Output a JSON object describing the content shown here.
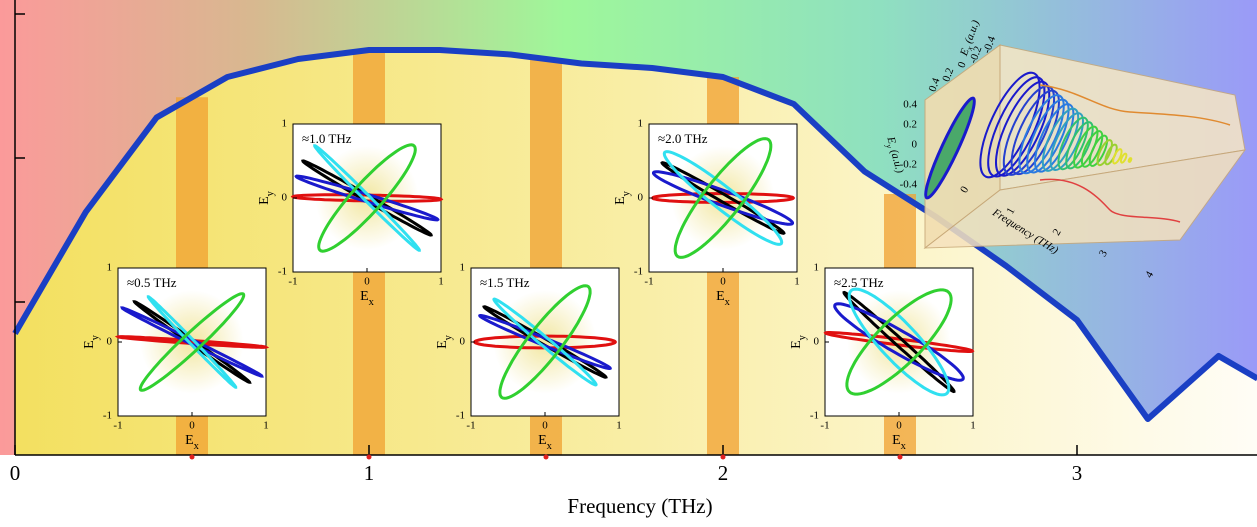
{
  "chart_data": [
    {
      "type": "line",
      "xlabel": "Frequency (THz)",
      "x": [
        0,
        0.2,
        0.4,
        0.6,
        0.8,
        1.0,
        1.2,
        1.4,
        1.6,
        1.8,
        2.0,
        2.2,
        2.4,
        2.6,
        2.8,
        3.0,
        3.2,
        3.4,
        3.51
      ],
      "values": [
        0.27,
        0.54,
        0.75,
        0.84,
        0.88,
        0.9,
        0.9,
        0.89,
        0.87,
        0.86,
        0.84,
        0.78,
        0.63,
        0.53,
        0.42,
        0.3,
        0.08,
        0.22,
        0.17
      ],
      "color": "#1a3fc4",
      "xlim": [
        0,
        3.51
      ],
      "xticks": [
        0,
        1,
        2,
        3
      ],
      "ylim": [
        0,
        1
      ],
      "yticks": [
        0.34,
        0.66,
        0.98
      ],
      "highlight_bands": [
        0.5,
        1,
        1.5,
        2,
        2.5
      ]
    },
    {
      "type": "ellipse",
      "title": "≈0.5 THz",
      "xlabel": "Ex",
      "ylabel": "Ey",
      "xlim": [
        -1,
        1
      ],
      "ylim": [
        -1,
        1
      ],
      "xticks": [
        -1,
        0,
        1
      ],
      "yticks": [
        -1,
        0,
        1
      ],
      "series": [
        {
          "color": "#e01010",
          "a": 1.0,
          "b": 0.02,
          "angle": -4
        },
        {
          "color": "#000000",
          "a": 0.95,
          "b": 0.03,
          "angle": -35
        },
        {
          "color": "#1a1acc",
          "a": 1.05,
          "b": 0.03,
          "angle": -26
        },
        {
          "color": "#30e0f0",
          "a": 0.85,
          "b": 0.03,
          "angle": -46
        },
        {
          "color": "#30d030",
          "a": 0.95,
          "b": 0.12,
          "angle": 43
        }
      ]
    },
    {
      "type": "ellipse",
      "title": "≈1.0 THz",
      "xlabel": "Ex",
      "ylabel": "Ey",
      "xlim": [
        -1,
        1
      ],
      "ylim": [
        -1,
        1
      ],
      "xticks": [
        -1,
        0,
        1
      ],
      "yticks": [
        -1,
        0,
        1
      ],
      "series": [
        {
          "color": "#e01010",
          "a": 1.0,
          "b": 0.04,
          "angle": -1
        },
        {
          "color": "#000000",
          "a": 1.0,
          "b": 0.04,
          "angle": -30
        },
        {
          "color": "#1a1acc",
          "a": 1.0,
          "b": 0.05,
          "angle": -17
        },
        {
          "color": "#30e0f0",
          "a": 1.0,
          "b": 0.04,
          "angle": -45
        },
        {
          "color": "#30d030",
          "a": 0.95,
          "b": 0.2,
          "angle": 48
        }
      ]
    },
    {
      "type": "ellipse",
      "title": "≈1.5 THz",
      "xlabel": "Ex",
      "ylabel": "Ey",
      "xlim": [
        -1,
        1
      ],
      "ylim": [
        -1,
        1
      ],
      "xticks": [
        -1,
        0,
        1
      ],
      "yticks": [
        -1,
        0,
        1
      ],
      "series": [
        {
          "color": "#e01010",
          "a": 0.95,
          "b": 0.08,
          "angle": 0
        },
        {
          "color": "#000000",
          "a": 0.95,
          "b": 0.04,
          "angle": -30
        },
        {
          "color": "#1a1acc",
          "a": 0.95,
          "b": 0.05,
          "angle": -22
        },
        {
          "color": "#30e0f0",
          "a": 0.9,
          "b": 0.06,
          "angle": -40
        },
        {
          "color": "#30d030",
          "a": 0.95,
          "b": 0.22,
          "angle": 52
        }
      ]
    },
    {
      "type": "ellipse",
      "title": "≈2.0 THz",
      "xlabel": "Ex",
      "ylabel": "Ey",
      "xlim": [
        -1,
        1
      ],
      "ylim": [
        -1,
        1
      ],
      "xticks": [
        -1,
        0,
        1
      ],
      "yticks": [
        -1,
        0,
        1
      ],
      "series": [
        {
          "color": "#e01010",
          "a": 0.95,
          "b": 0.06,
          "angle": 0
        },
        {
          "color": "#000000",
          "a": 0.95,
          "b": 0.05,
          "angle": -30
        },
        {
          "color": "#1a1acc",
          "a": 1.0,
          "b": 0.1,
          "angle": -20
        },
        {
          "color": "#30e0f0",
          "a": 1.0,
          "b": 0.15,
          "angle": -38
        },
        {
          "color": "#30d030",
          "a": 1.0,
          "b": 0.25,
          "angle": 52
        }
      ]
    },
    {
      "type": "ellipse",
      "title": "≈2.5 THz",
      "xlabel": "Ex",
      "ylabel": "Ey",
      "xlim": [
        -1,
        1
      ],
      "ylim": [
        -1,
        1
      ],
      "xticks": [
        -1,
        0,
        1
      ],
      "yticks": [
        -1,
        0,
        1
      ],
      "series": [
        {
          "color": "#e01010",
          "a": 1.0,
          "b": 0.04,
          "angle": -7
        },
        {
          "color": "#000000",
          "a": 1.0,
          "b": 0.05,
          "angle": -42
        },
        {
          "color": "#1a1acc",
          "a": 1.0,
          "b": 0.15,
          "angle": -30
        },
        {
          "color": "#30e0f0",
          "a": 0.95,
          "b": 0.25,
          "angle": -47
        },
        {
          "color": "#30d030",
          "a": 0.95,
          "b": 0.3,
          "angle": 45
        }
      ]
    },
    {
      "type": "line3d",
      "xlabel": "Frequency (THz)",
      "xticks": [
        0,
        1,
        2,
        3,
        4
      ],
      "ylabel": "Ex (a.u.)",
      "yticks": [
        -0.4,
        -0.2,
        0,
        0.2,
        0.4
      ],
      "zlabel": "Ey (a.u.)",
      "zticks": [
        -0.4,
        -0.2,
        0,
        0.2,
        0.4
      ]
    }
  ]
}
